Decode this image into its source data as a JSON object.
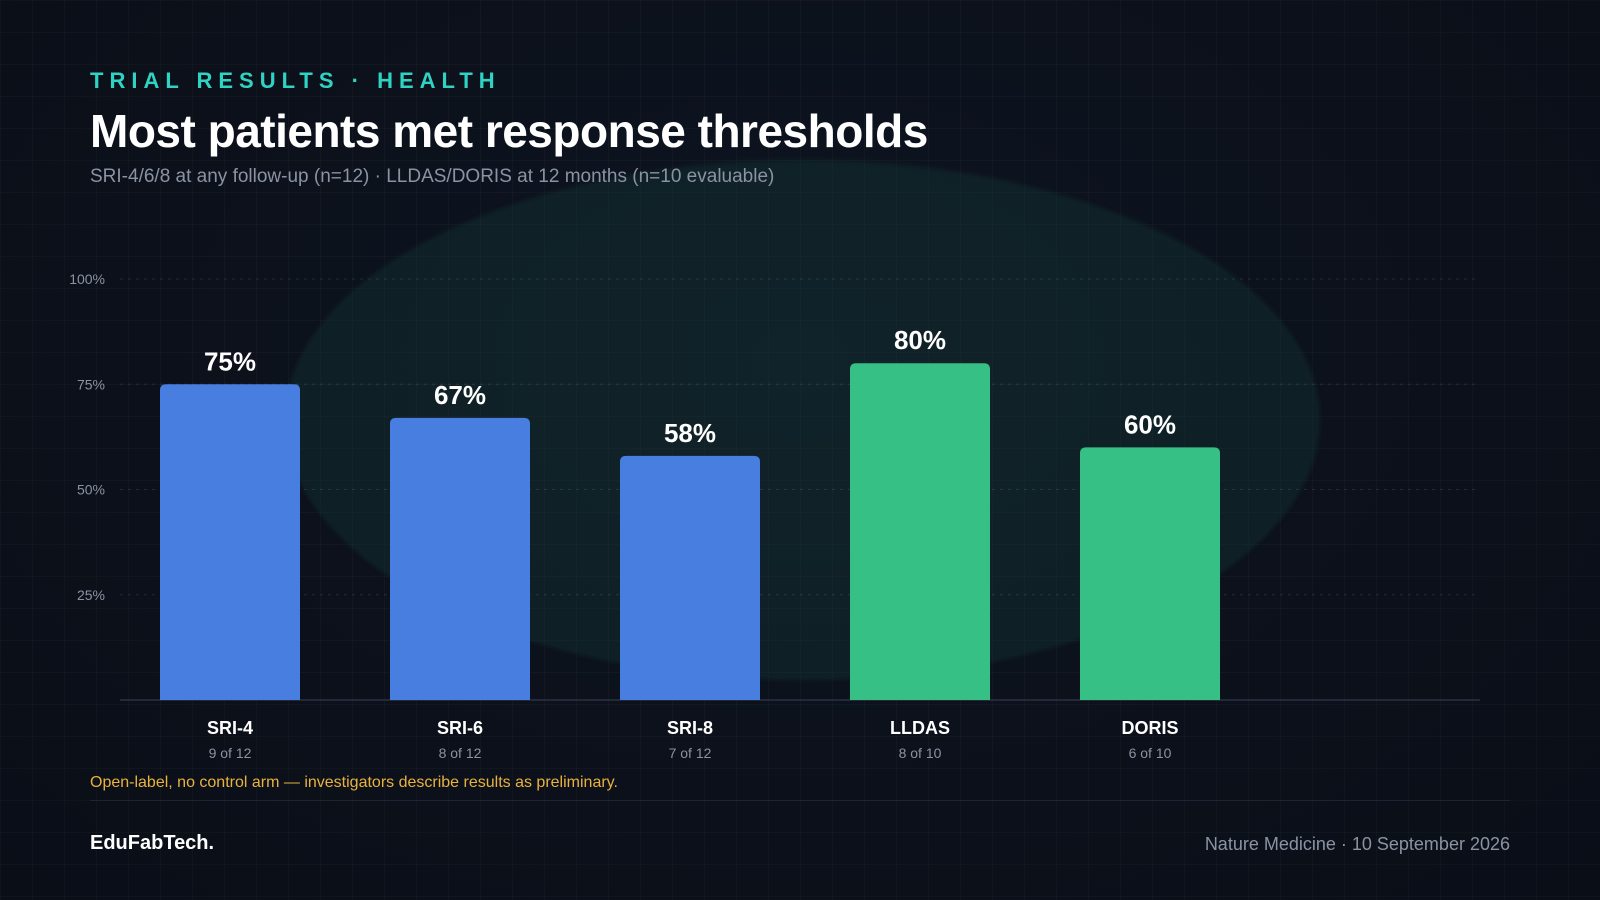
{
  "header": {
    "eyebrow": "TRIAL RESULTS · HEALTH",
    "title": "Most patients met response thresholds",
    "subtitle": "SRI-4/6/8 at any follow-up (n=12) · LLDAS/DORIS at 12 months (n=10 evaluable)"
  },
  "chart_data": {
    "type": "bar",
    "categories": [
      "SRI-4",
      "SRI-6",
      "SRI-8",
      "LLDAS",
      "DORIS"
    ],
    "values": [
      75,
      67,
      58,
      80,
      60
    ],
    "value_labels": [
      "75%",
      "67%",
      "58%",
      "80%",
      "60%"
    ],
    "sublabels": [
      "9 of 12",
      "8 of 12",
      "7 of 12",
      "8 of 10",
      "6 of 10"
    ],
    "bar_colors": [
      "#477ee0",
      "#477ee0",
      "#477ee0",
      "#37c086",
      "#37c086"
    ],
    "ylim": [
      0,
      100
    ],
    "yticks": [
      25,
      50,
      75,
      100
    ],
    "ytick_labels": [
      "25%",
      "50%",
      "75%",
      "100%"
    ],
    "grid": true
  },
  "footnote": "Open-label, no control arm — investigators describe results as preliminary.",
  "footer": {
    "brand": "EduFabTech.",
    "source": "Nature Medicine · 10 September 2026"
  }
}
